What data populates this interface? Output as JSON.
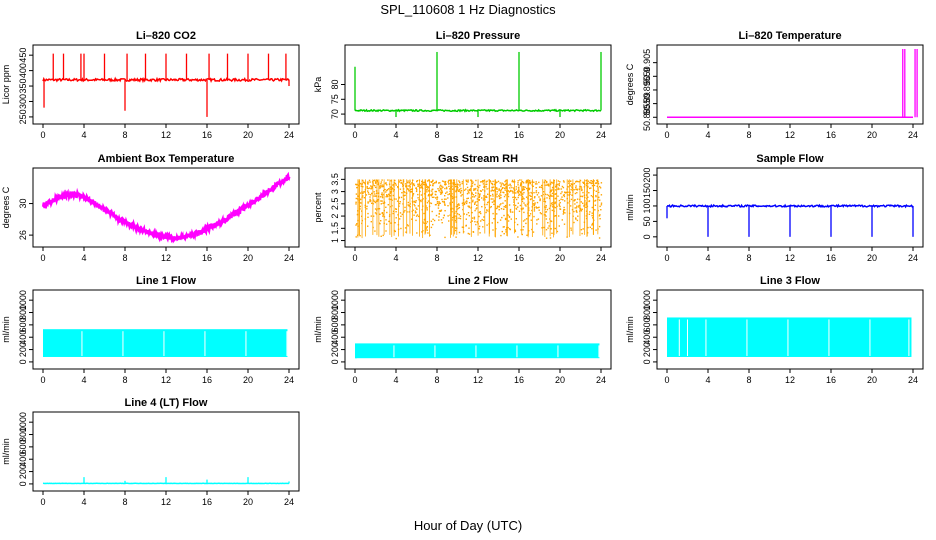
{
  "title": "SPL_110608  1 Hz Diagnostics",
  "x_axis_title": "Hour of Day (UTC)",
  "chart_data": [
    {
      "type": "line",
      "title": "Li–820 CO2",
      "ylabel": "Licor ppm",
      "color": "#ff0000",
      "xlim": [
        0,
        24
      ],
      "xticks": [
        0,
        4,
        8,
        12,
        16,
        20,
        24
      ],
      "ylim": [
        240,
        470
      ],
      "yticks": [
        250,
        300,
        350,
        400,
        450
      ],
      "baseline": 370,
      "noise": 4,
      "spikes": [
        {
          "x": 0.1,
          "y": 280
        },
        {
          "x": 1.0,
          "y": 455
        },
        {
          "x": 2.0,
          "y": 455
        },
        {
          "x": 3.7,
          "y": 455
        },
        {
          "x": 4.0,
          "y": 455
        },
        {
          "x": 6.0,
          "y": 455
        },
        {
          "x": 8.0,
          "y": 270
        },
        {
          "x": 8.2,
          "y": 455
        },
        {
          "x": 10.0,
          "y": 455
        },
        {
          "x": 12.0,
          "y": 455
        },
        {
          "x": 14.0,
          "y": 455
        },
        {
          "x": 16.0,
          "y": 250
        },
        {
          "x": 16.2,
          "y": 455
        },
        {
          "x": 18.0,
          "y": 455
        },
        {
          "x": 20.0,
          "y": 455
        },
        {
          "x": 22.0,
          "y": 455
        },
        {
          "x": 23.7,
          "y": 455
        },
        {
          "x": 24.0,
          "y": 350
        }
      ]
    },
    {
      "type": "line",
      "title": "Li–820 Pressure",
      "ylabel": "kPa",
      "color": "#00cc00",
      "xlim": [
        0,
        24
      ],
      "xticks": [
        0,
        4,
        8,
        12,
        16,
        20,
        24
      ],
      "ylim": [
        68,
        92
      ],
      "yticks": [
        70,
        75,
        80
      ],
      "baseline": 71.2,
      "noise": 0.25,
      "spikes": [
        {
          "x": 0.0,
          "y": 86
        },
        {
          "x": 4.0,
          "y": 69
        },
        {
          "x": 8.0,
          "y": 91
        },
        {
          "x": 12.0,
          "y": 69
        },
        {
          "x": 16.0,
          "y": 91
        },
        {
          "x": 20.0,
          "y": 69
        },
        {
          "x": 24.0,
          "y": 91
        }
      ]
    },
    {
      "type": "line",
      "title": "Li–820 Temperature",
      "ylabel": "degrees C",
      "color": "#ff00ff",
      "xlim": [
        0,
        24
      ],
      "xticks": [
        0,
        4,
        8,
        12,
        16,
        20,
        24
      ],
      "ylim": [
        50.884,
        50.91
      ],
      "yticks": [
        50.885,
        50.89,
        50.895,
        50.9,
        50.905
      ],
      "baseline": 50.885,
      "noise": 0,
      "spikes": [
        {
          "x": 23.0,
          "y": 50.91
        },
        {
          "x": 23.2,
          "y": 50.91
        },
        {
          "x": 24.2,
          "y": 50.91
        },
        {
          "x": 24.4,
          "y": 50.91
        }
      ]
    },
    {
      "type": "line",
      "title": "Ambient Box Temperature",
      "ylabel": "degrees C",
      "color": "#ff00ff",
      "xlim": [
        0,
        24
      ],
      "xticks": [
        0,
        4,
        8,
        12,
        16,
        20,
        24
      ],
      "ylim": [
        25,
        34
      ],
      "yticks": [
        26,
        30
      ],
      "x": [
        0,
        1,
        2,
        3,
        4,
        5,
        6,
        7,
        8,
        9,
        10,
        11,
        12,
        13,
        14,
        15,
        16,
        17,
        18,
        19,
        20,
        21,
        22,
        23,
        24
      ],
      "y": [
        29.8,
        30.4,
        31.0,
        31.2,
        30.8,
        30.1,
        29.2,
        28.4,
        27.6,
        27.0,
        26.5,
        26.0,
        25.7,
        25.6,
        25.8,
        26.2,
        26.8,
        27.4,
        28.1,
        28.9,
        29.8,
        30.7,
        31.6,
        32.5,
        33.4
      ],
      "noise": 0.25
    },
    {
      "type": "scatter",
      "title": "Gas Stream RH",
      "ylabel": "percent",
      "color": "#ffa500",
      "xlim": [
        0,
        24
      ],
      "xticks": [
        0,
        4,
        8,
        12,
        16,
        20,
        24
      ],
      "ylim": [
        0.9,
        3.8
      ],
      "yticks": [
        1.0,
        1.5,
        2.0,
        2.5,
        3.0,
        3.5
      ],
      "band_low": 1.3,
      "band_high": 3.5,
      "band_center": 3.3
    },
    {
      "type": "line",
      "title": "Sample Flow",
      "ylabel": "ml/min",
      "color": "#0000ff",
      "xlim": [
        0,
        24
      ],
      "xticks": [
        0,
        4,
        8,
        12,
        16,
        20,
        24
      ],
      "ylim": [
        -20,
        210
      ],
      "yticks": [
        0,
        50,
        100,
        150,
        200
      ],
      "baseline": 100,
      "noise": 3,
      "spikes": [
        {
          "x": 0.0,
          "y": 60
        },
        {
          "x": 4.0,
          "y": 0
        },
        {
          "x": 8.0,
          "y": 0
        },
        {
          "x": 12.0,
          "y": 0
        },
        {
          "x": 16.0,
          "y": 0
        },
        {
          "x": 20.0,
          "y": 0
        },
        {
          "x": 24.0,
          "y": 0
        }
      ]
    },
    {
      "type": "area",
      "title": "Line 1 Flow",
      "ylabel": "ml/min",
      "color": "#00ffff",
      "xlim": [
        0,
        24
      ],
      "xticks": [
        0,
        4,
        8,
        12,
        16,
        20,
        24
      ],
      "ylim": [
        -50,
        1100
      ],
      "yticks": [
        0,
        200,
        400,
        600,
        800,
        1000
      ],
      "low": 80,
      "high": 530,
      "gaps": [
        3.8,
        7.8,
        11.8,
        15.8,
        19.8,
        23.8
      ]
    },
    {
      "type": "area",
      "title": "Line 2 Flow",
      "ylabel": "ml/min",
      "color": "#00ffff",
      "xlim": [
        0,
        24
      ],
      "xticks": [
        0,
        4,
        8,
        12,
        16,
        20,
        24
      ],
      "ylim": [
        -50,
        1100
      ],
      "yticks": [
        0,
        200,
        400,
        600,
        800,
        1000
      ],
      "low": 60,
      "high": 300,
      "gaps": [
        3.8,
        7.8,
        11.8,
        15.8,
        19.8,
        23.8
      ]
    },
    {
      "type": "area",
      "title": "Line 3 Flow",
      "ylabel": "ml/min",
      "color": "#00ffff",
      "xlim": [
        0,
        24
      ],
      "xticks": [
        0,
        4,
        8,
        12,
        16,
        20,
        24
      ],
      "ylim": [
        -50,
        1100
      ],
      "yticks": [
        0,
        200,
        400,
        600,
        800,
        1000
      ],
      "low": 80,
      "high": 720,
      "gaps": [
        1.2,
        2.0,
        3.8,
        7.8,
        11.8,
        15.8,
        19.8,
        23.6
      ]
    },
    {
      "type": "line",
      "title": "Line 4 (LT) Flow",
      "ylabel": "ml/min",
      "color": "#00ffff",
      "xlim": [
        0,
        24
      ],
      "xticks": [
        0,
        4,
        8,
        12,
        16,
        20,
        24
      ],
      "ylim": [
        -50,
        1100
      ],
      "yticks": [
        0,
        200,
        400,
        600,
        800,
        1000
      ],
      "baseline": 8,
      "noise": 2,
      "spikes": [
        {
          "x": 4.0,
          "y": 110
        },
        {
          "x": 8.0,
          "y": 50
        },
        {
          "x": 12.0,
          "y": 110
        },
        {
          "x": 16.0,
          "y": 70
        },
        {
          "x": 20.0,
          "y": 110
        },
        {
          "x": 24.0,
          "y": 40
        }
      ]
    }
  ]
}
